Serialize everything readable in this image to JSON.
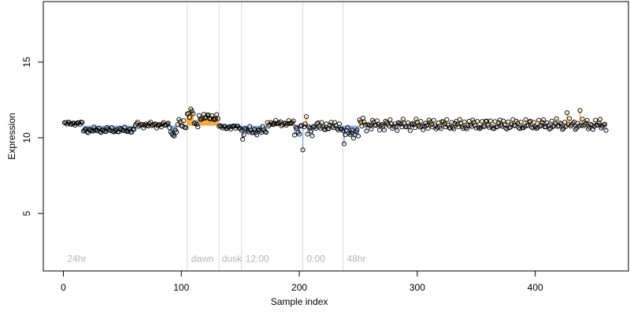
{
  "chart_data": {
    "type": "scatter",
    "title": "",
    "xlabel": "Sample index",
    "ylabel": "Expression",
    "xlim": [
      -17,
      479
    ],
    "ylim": [
      1.2,
      19.0
    ],
    "x_ticks": [
      0,
      100,
      200,
      300,
      400
    ],
    "y_ticks": [
      5,
      10,
      15
    ],
    "x_tick_labels": [
      "0",
      "100",
      "200",
      "300",
      "400"
    ],
    "y_tick_labels": [
      "5",
      "10",
      "15"
    ],
    "baseline": 10.8,
    "grid": false,
    "period_boundaries": [
      105,
      132,
      151,
      203,
      237
    ],
    "period_labels": [
      {
        "text": "24hr",
        "x": 2
      },
      {
        "text": "dawn",
        "x": 107
      },
      {
        "text": "dusk",
        "x": 133
      },
      {
        "text": "12:00",
        "x": 153
      },
      {
        "text": "0:00",
        "x": 205
      },
      {
        "text": "48hr",
        "x": 239
      }
    ],
    "label_y": 2.0,
    "segments": [
      {
        "from": 1,
        "to": 16,
        "base": 10.95,
        "amp": 0.12
      },
      {
        "from": 17,
        "to": 60,
        "base": 10.5,
        "amp": 0.2
      },
      {
        "from": 61,
        "to": 90,
        "base": 10.85,
        "amp": 0.2
      },
      {
        "from": 91,
        "to": 96,
        "base": 10.3,
        "amp": 0.3
      },
      {
        "from": 97,
        "to": 104,
        "base": 10.9,
        "amp": 0.4
      },
      {
        "from": 105,
        "to": 110,
        "base": 11.55,
        "amp": 0.3
      },
      {
        "from": 111,
        "to": 114,
        "base": 10.9,
        "amp": 0.2
      },
      {
        "from": 115,
        "to": 131,
        "base": 11.35,
        "amp": 0.25
      },
      {
        "from": 132,
        "to": 150,
        "base": 10.7,
        "amp": 0.15
      },
      {
        "from": 151,
        "to": 172,
        "base": 10.45,
        "amp": 0.3
      },
      {
        "from": 173,
        "to": 195,
        "base": 10.95,
        "amp": 0.2
      },
      {
        "from": 196,
        "to": 213,
        "base": 10.6,
        "amp": 0.5
      },
      {
        "from": 214,
        "to": 236,
        "base": 10.75,
        "amp": 0.35
      },
      {
        "from": 237,
        "to": 250,
        "base": 10.35,
        "amp": 0.4
      },
      {
        "from": 251,
        "to": 460,
        "base": 10.85,
        "amp": 0.4
      }
    ],
    "outliers": [
      {
        "x": 203,
        "y": 9.2
      },
      {
        "x": 238,
        "y": 9.6
      },
      {
        "x": 152,
        "y": 9.9
      },
      {
        "x": 206,
        "y": 11.4
      },
      {
        "x": 108,
        "y": 11.9
      },
      {
        "x": 438,
        "y": 11.8
      },
      {
        "x": 427,
        "y": 11.65
      },
      {
        "x": 254,
        "y": 11.3
      }
    ],
    "colors": {
      "above": "#f2a53a",
      "below": "#7fa6e0",
      "point_edge": "#000000",
      "boundary": "#d9d9d9",
      "axis": "#000000"
    }
  }
}
